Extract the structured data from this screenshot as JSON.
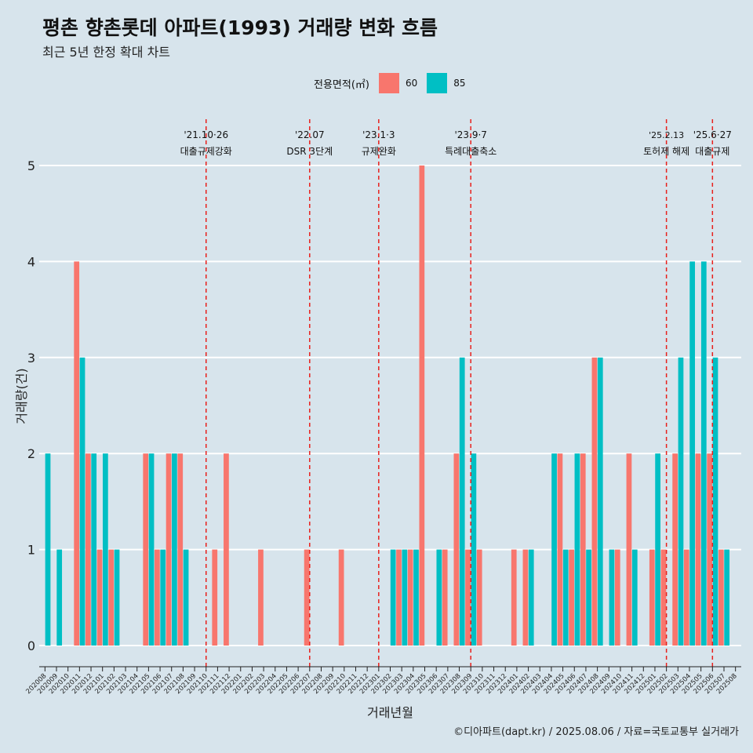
{
  "chart_data": {
    "type": "bar",
    "title": "평촌 향촌롯데 아파트(1993) 거래량 변화 흐름",
    "subtitle": "최근 5년 한정 확대 차트",
    "xlabel": "거래년월",
    "ylabel": "거래량(건)",
    "ylim": [
      0,
      5
    ],
    "yticks": [
      "0",
      "1",
      "2",
      "3",
      "4",
      "5"
    ],
    "legend": {
      "title": "전용면적(㎡)",
      "position": "top"
    },
    "categories": [
      "202008",
      "202009",
      "202010",
      "202011",
      "202012",
      "202101",
      "202102",
      "202103",
      "202104",
      "202105",
      "202106",
      "202107",
      "202108",
      "202109",
      "202110",
      "202111",
      "202112",
      "202201",
      "202202",
      "202203",
      "202204",
      "202205",
      "202206",
      "202207",
      "202208",
      "202209",
      "202210",
      "202211",
      "202212",
      "202301",
      "202302",
      "202303",
      "202304",
      "202305",
      "202306",
      "202307",
      "202308",
      "202309",
      "202310",
      "202311",
      "202312",
      "202401",
      "202402",
      "202403",
      "202404",
      "202405",
      "202406",
      "202407",
      "202408",
      "202409",
      "202410",
      "202411",
      "202412",
      "202501",
      "202502",
      "202503",
      "202504",
      "202505",
      "202506",
      "202507",
      "202508"
    ],
    "series": [
      {
        "name": "60",
        "color": "#f8766d",
        "values": [
          0,
          0,
          0,
          4,
          2,
          1,
          1,
          0,
          0,
          2,
          1,
          2,
          2,
          0,
          0,
          1,
          2,
          0,
          0,
          1,
          0,
          0,
          0,
          1,
          0,
          0,
          1,
          0,
          0,
          0,
          0,
          1,
          1,
          5,
          0,
          1,
          2,
          1,
          1,
          0,
          0,
          1,
          1,
          0,
          0,
          2,
          1,
          2,
          3,
          0,
          1,
          2,
          0,
          1,
          1,
          2,
          1,
          2,
          2,
          1,
          0
        ]
      },
      {
        "name": "85",
        "color": "#00bfc4",
        "values": [
          2,
          1,
          0,
          3,
          2,
          2,
          1,
          0,
          0,
          2,
          1,
          2,
          1,
          0,
          0,
          0,
          0,
          0,
          0,
          0,
          0,
          0,
          0,
          0,
          0,
          0,
          0,
          0,
          0,
          0,
          1,
          1,
          1,
          0,
          1,
          0,
          3,
          2,
          0,
          0,
          0,
          0,
          1,
          0,
          2,
          1,
          2,
          1,
          3,
          1,
          0,
          1,
          0,
          2,
          0,
          3,
          4,
          4,
          3,
          1,
          0
        ]
      }
    ],
    "annotations": [
      {
        "category": "202110",
        "date": "'21.10·26",
        "text": "대출규제강화"
      },
      {
        "category": "202207",
        "date": "'22.07",
        "text": "DSR 3단계"
      },
      {
        "category": "202301",
        "date": "'23.1·3",
        "text": "규제완화"
      },
      {
        "category": "202309",
        "date": "'23.9·7",
        "text": "특례대출축소"
      },
      {
        "category": "202502",
        "date": "'25.2.13",
        "text": "토허제 해제"
      },
      {
        "category": "202506",
        "date": "'25.6·27",
        "text": "대출규제"
      }
    ],
    "caption": "©디아파트(dapt.kr) / 2025.08.06 / 자료=국토교통부 실거래가"
  },
  "colors": {
    "background": "#d7e4ec",
    "grid": "#ffffff",
    "annotation_line": "#e8201c"
  }
}
